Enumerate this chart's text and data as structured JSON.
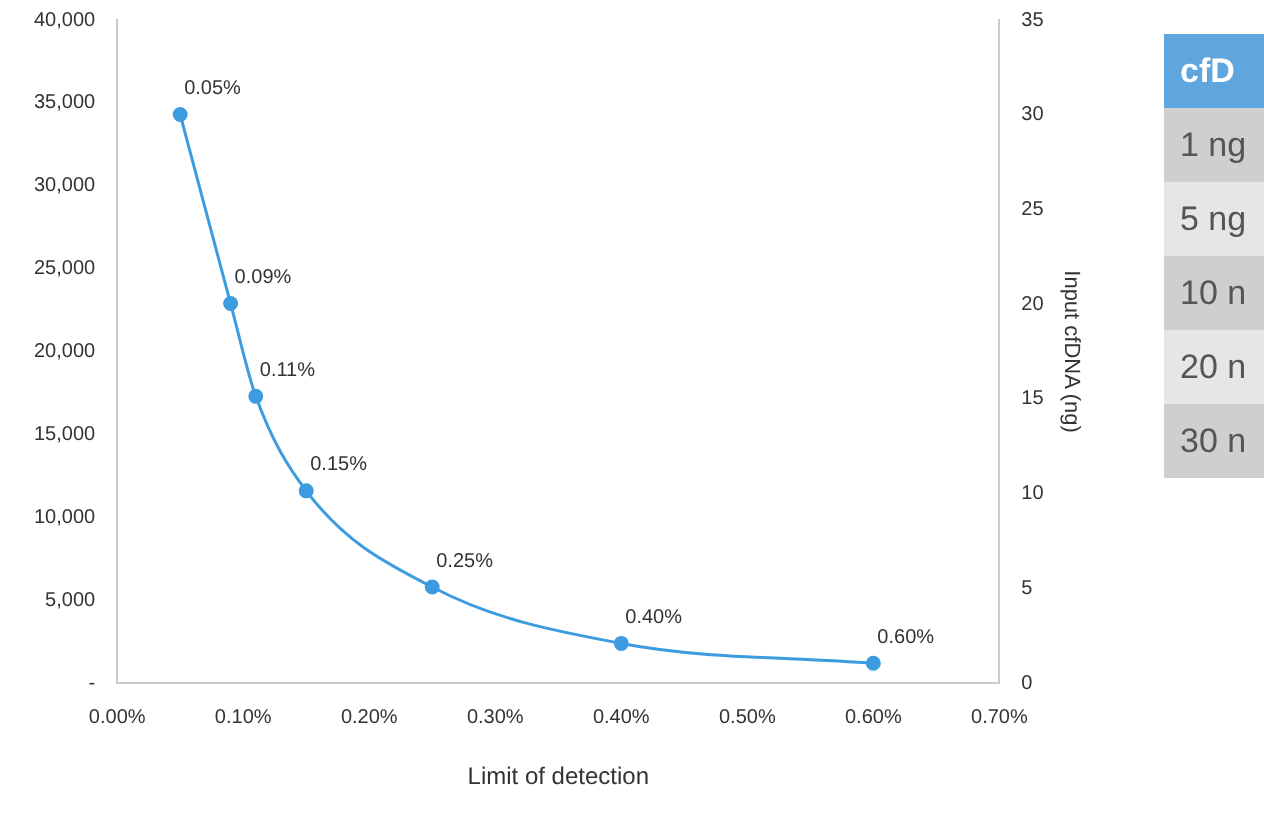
{
  "chart_data": {
    "type": "line",
    "xlabel": "Limit of detection",
    "y2label": "Input cfDNA (ng)",
    "x": [
      0.05,
      0.09,
      0.11,
      0.15,
      0.25,
      0.4,
      0.6
    ],
    "series": [
      {
        "color": "#3d9be0",
        "values": [
          34300,
          22900,
          17300,
          11600,
          5800,
          2400,
          1200
        ]
      }
    ],
    "xlim": [
      0,
      0.7
    ],
    "xticks": [
      {
        "value": 0,
        "label": "0.00%"
      },
      {
        "value": 0.1,
        "label": "0.10%"
      },
      {
        "value": 0.2,
        "label": "0.20%"
      },
      {
        "value": 0.3,
        "label": "0.30%"
      },
      {
        "value": 0.4,
        "label": "0.40%"
      },
      {
        "value": 0.5,
        "label": "0.50%"
      },
      {
        "value": 0.6,
        "label": "0.60%"
      },
      {
        "value": 0.7,
        "label": "0.70%"
      }
    ],
    "ylim": [
      0,
      40000
    ],
    "yticks": [
      {
        "value": 0,
        "label": "-"
      },
      {
        "value": 5000,
        "label": "5,000"
      },
      {
        "value": 10000,
        "label": "10,000"
      },
      {
        "value": 15000,
        "label": "15,000"
      },
      {
        "value": 20000,
        "label": "20,000"
      },
      {
        "value": 25000,
        "label": "25,000"
      },
      {
        "value": 30000,
        "label": "30,000"
      },
      {
        "value": 35000,
        "label": "35,000"
      },
      {
        "value": 40000,
        "label": "40,000"
      }
    ],
    "y2lim": [
      0,
      35
    ],
    "y2ticks": [
      0,
      5,
      10,
      15,
      20,
      25,
      30,
      35
    ],
    "marker": "circle",
    "line_style": "solid",
    "grid": false,
    "legend": false,
    "annotations": [
      {
        "text": "0.05%",
        "x": 0.05,
        "y": 34300
      },
      {
        "text": "0.09%",
        "x": 0.09,
        "y": 22900
      },
      {
        "text": "0.11%",
        "x": 0.11,
        "y": 17300
      },
      {
        "text": "0.15%",
        "x": 0.15,
        "y": 11600
      },
      {
        "text": "0.25%",
        "x": 0.25,
        "y": 5800
      },
      {
        "text": "0.40%",
        "x": 0.4,
        "y": 2400
      },
      {
        "text": "0.60%",
        "x": 0.6,
        "y": 1200
      },
      "cfD",
      "1 ng",
      "5 ng",
      "10 n",
      "20 n",
      "30 n"
    ]
  }
}
